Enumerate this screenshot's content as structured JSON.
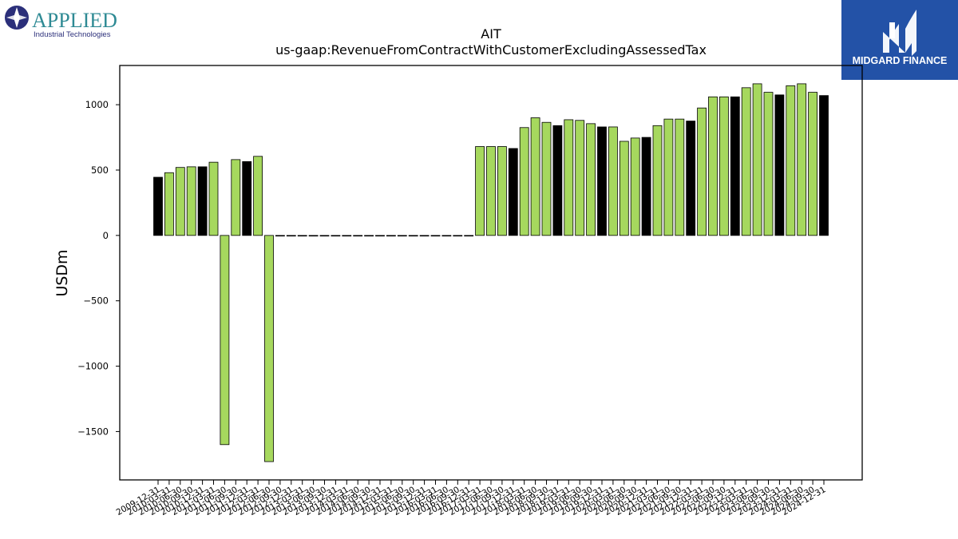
{
  "logo_left": {
    "brand": "APPLIED",
    "tagline": "Industrial Technologies",
    "icon": "compass-star-icon"
  },
  "logo_right": {
    "text": "MIDGARD FINANCE",
    "icon": "midgard-m-icon",
    "background": "#2352a7"
  },
  "chart_data": {
    "type": "bar",
    "title": "AIT",
    "subtitle": "us-gaap:RevenueFromContractWithCustomerExcludingAssessedTax",
    "xlabel": "",
    "ylabel": "USDm",
    "ylim": [
      -1870,
      1300
    ],
    "yticks": [
      -1500,
      -1000,
      -500,
      0,
      500,
      1000
    ],
    "grid": false,
    "colors": {
      "quarterly": "#a6d85e",
      "annual": "#000000"
    },
    "categories": [
      "2009-12-31",
      "2010-03-31",
      "2010-06-30",
      "2010-09-30",
      "2010-12-31",
      "2011-03-31",
      "2011-06-30",
      "2011-09-30",
      "2011-12-31",
      "2012-03-31",
      "2012-06-30",
      "2012-09-30",
      "2012-12-31",
      "2013-03-31",
      "2013-06-30",
      "2013-09-30",
      "2013-12-31",
      "2014-03-31",
      "2014-06-30",
      "2014-09-30",
      "2014-12-31",
      "2015-03-31",
      "2015-06-30",
      "2015-09-30",
      "2015-12-31",
      "2016-03-31",
      "2016-06-30",
      "2016-09-30",
      "2016-12-31",
      "2017-03-31",
      "2017-06-30",
      "2017-09-30",
      "2017-12-31",
      "2018-03-31",
      "2018-06-30",
      "2018-09-30",
      "2018-12-31",
      "2019-03-31",
      "2019-06-30",
      "2019-09-30",
      "2019-12-31",
      "2020-03-31",
      "2020-06-30",
      "2020-09-30",
      "2020-12-31",
      "2021-03-31",
      "2021-06-30",
      "2021-09-30",
      "2021-12-31",
      "2022-03-31",
      "2022-06-30",
      "2022-09-30",
      "2022-12-31",
      "2023-03-31",
      "2023-06-30",
      "2023-09-30",
      "2023-12-31",
      "2024-03-31",
      "2024-06-30",
      "2024-09-30",
      "2024-12-31"
    ],
    "series": [
      {
        "values": [
          445,
          480,
          520,
          525,
          525,
          560,
          -1600,
          580,
          565,
          605,
          -1730,
          0,
          0,
          0,
          0,
          0,
          0,
          0,
          0,
          0,
          0,
          0,
          0,
          0,
          0,
          0,
          0,
          0,
          0,
          680,
          680,
          680,
          665,
          825,
          900,
          865,
          840,
          885,
          880,
          855,
          830,
          830,
          720,
          745,
          750,
          840,
          890,
          890,
          875,
          975,
          1060,
          1060,
          1060,
          1130,
          1160,
          1095,
          1075,
          1145,
          1160,
          1095,
          1070
        ]
      }
    ],
    "bar_kind": [
      "annual",
      "quarterly",
      "quarterly",
      "quarterly",
      "annual",
      "quarterly",
      "quarterly",
      "quarterly",
      "annual",
      "quarterly",
      "quarterly",
      "annual",
      "quarterly",
      "quarterly",
      "quarterly",
      "annual",
      "quarterly",
      "quarterly",
      "quarterly",
      "annual",
      "quarterly",
      "quarterly",
      "quarterly",
      "annual",
      "quarterly",
      "quarterly",
      "quarterly",
      "annual",
      "quarterly",
      "quarterly",
      "quarterly",
      "quarterly",
      "annual",
      "quarterly",
      "quarterly",
      "quarterly",
      "annual",
      "quarterly",
      "quarterly",
      "quarterly",
      "annual",
      "quarterly",
      "quarterly",
      "quarterly",
      "annual",
      "quarterly",
      "quarterly",
      "quarterly",
      "annual",
      "quarterly",
      "quarterly",
      "quarterly",
      "annual",
      "quarterly",
      "quarterly",
      "quarterly",
      "annual",
      "quarterly",
      "quarterly",
      "quarterly",
      "annual"
    ]
  }
}
